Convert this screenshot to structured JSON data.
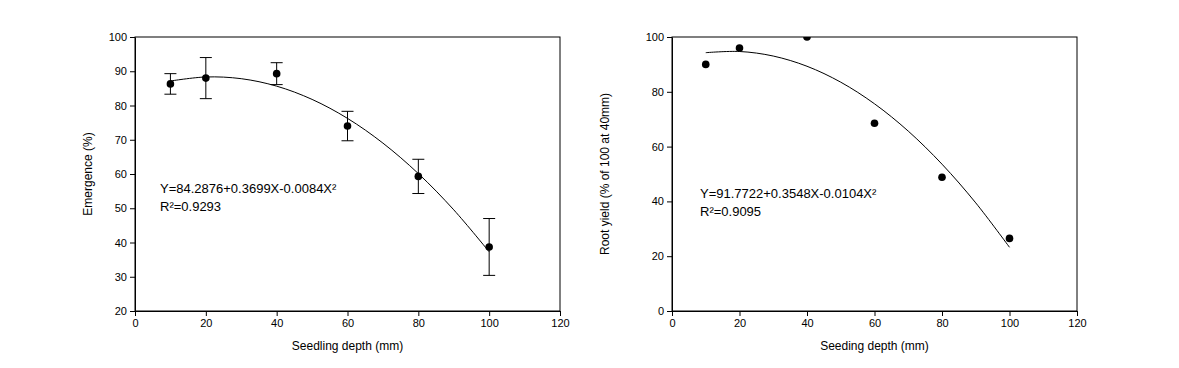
{
  "chart_data": [
    {
      "type": "scatter",
      "xlabel": "Seedling depth (mm)",
      "ylabel": "Emergence (%)",
      "annotations": [
        "Y=84.2876+0.3699X-0.0084X²",
        "R²=0.9293"
      ],
      "xlim": [
        0,
        120
      ],
      "xticks": [
        0,
        20,
        40,
        60,
        80,
        100,
        120
      ],
      "ylim": [
        20,
        100
      ],
      "yticks": [
        20,
        30,
        40,
        50,
        60,
        70,
        80,
        90,
        100
      ],
      "series": [
        {
          "type": "scatter",
          "marker": "circle",
          "color": "#000000",
          "x": [
            10,
            20,
            40,
            60,
            80,
            100
          ],
          "values": [
            86.3,
            88,
            89.3,
            74,
            59.3,
            38.7
          ],
          "error": [
            3,
            6,
            3.2,
            4.3,
            5,
            8.3
          ]
        },
        {
          "type": "line",
          "line_style": "solid",
          "color": "#000000",
          "x": [
            10,
            20,
            30,
            40,
            50,
            60,
            70,
            80,
            90,
            100
          ],
          "values": [
            87.15,
            88.33,
            87.83,
            85.65,
            81.78,
            76.24,
            69.02,
            60.12,
            49.54,
            37.28
          ]
        }
      ]
    },
    {
      "type": "scatter",
      "xlabel": "Seeding depth (mm)",
      "ylabel": "Root yield (% of 100 at 40mm)",
      "annotations": [
        "Y=91.7722+0.3548X-0.0104X²",
        "R²=0.9095"
      ],
      "xlim": [
        0,
        120
      ],
      "xticks": [
        0,
        20,
        40,
        60,
        80,
        100,
        120
      ],
      "ylim": [
        0,
        100
      ],
      "yticks": [
        0,
        20,
        40,
        60,
        80,
        100
      ],
      "series": [
        {
          "type": "scatter",
          "marker": "circle",
          "color": "#000000",
          "x": [
            10,
            20,
            40,
            60,
            80,
            100
          ],
          "values": [
            90,
            96,
            100,
            68.5,
            48.8,
            26.5
          ]
        },
        {
          "type": "line",
          "line_style": "solid",
          "color": "#000000",
          "x": [
            10,
            20,
            30,
            40,
            50,
            60,
            70,
            80,
            90,
            100
          ],
          "values": [
            94.28,
            94.71,
            93.05,
            89.32,
            83.51,
            75.62,
            65.65,
            53.59,
            39.46,
            23.25
          ]
        }
      ]
    }
  ]
}
